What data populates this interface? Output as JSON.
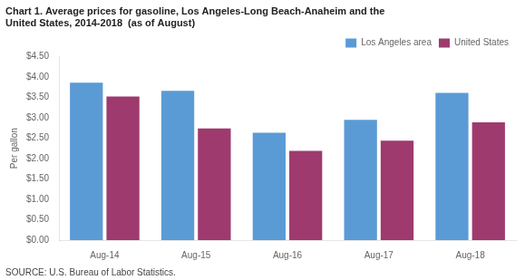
{
  "chart_data": {
    "type": "bar",
    "title": [
      "Chart 1. Average prices for gasoline, Los Angeles-Long Beach-Anaheim and the",
      "United States, 2014-2018  (as of August)"
    ],
    "ylabel": "Per gallon",
    "source": "SOURCE: U.S. Bureau of Labor Statistics.",
    "categories": [
      "Aug-14",
      "Aug-15",
      "Aug-16",
      "Aug-17",
      "Aug-18"
    ],
    "series": [
      {
        "name": "Los Angeles area",
        "color": "#5B9BD5",
        "values": [
          3.86,
          3.66,
          2.63,
          2.95,
          3.61
        ]
      },
      {
        "name": "United States",
        "color": "#9E3A6E",
        "values": [
          3.52,
          2.74,
          2.19,
          2.44,
          2.89
        ]
      }
    ],
    "ylim": [
      0,
      4.5
    ],
    "yticks": [
      {
        "value": 0.0,
        "label": "$0.00"
      },
      {
        "value": 0.5,
        "label": "$0.50"
      },
      {
        "value": 1.0,
        "label": "$1.00"
      },
      {
        "value": 1.5,
        "label": "$1.50"
      },
      {
        "value": 2.0,
        "label": "$2.00"
      },
      {
        "value": 2.5,
        "label": "$2.50"
      },
      {
        "value": 3.0,
        "label": "$3.00"
      },
      {
        "value": 3.5,
        "label": "$3.50"
      },
      {
        "value": 4.0,
        "label": "$4.00"
      },
      {
        "value": 4.5,
        "label": "$4.50"
      }
    ],
    "grid": false,
    "legend": "upper right"
  }
}
